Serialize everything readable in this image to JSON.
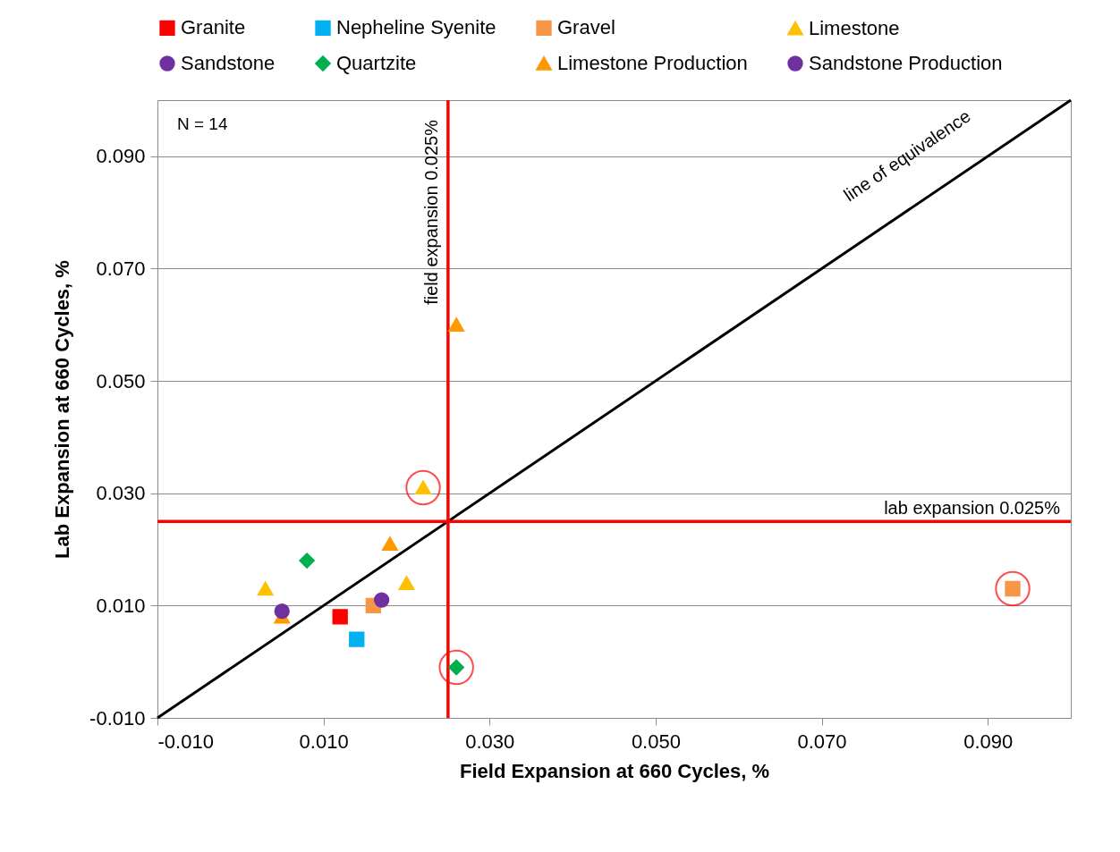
{
  "chart_data": {
    "type": "scatter",
    "xlabel": "Field Expansion at 660 Cycles, %",
    "ylabel": "Lab Expansion at 660 Cycles, %",
    "xlim": [
      -0.01,
      0.1
    ],
    "ylim": [
      -0.01,
      0.1
    ],
    "xticks": [
      {
        "value": -0.01,
        "label": "-0.010"
      },
      {
        "value": 0.01,
        "label": "0.010"
      },
      {
        "value": 0.03,
        "label": "0.030"
      },
      {
        "value": 0.05,
        "label": "0.050"
      },
      {
        "value": 0.07,
        "label": "0.070"
      },
      {
        "value": 0.09,
        "label": "0.090"
      }
    ],
    "yticks": [
      {
        "value": -0.01,
        "label": "-0.010"
      },
      {
        "value": 0.01,
        "label": "0.010"
      },
      {
        "value": 0.03,
        "label": "0.030"
      },
      {
        "value": 0.05,
        "label": "0.050"
      },
      {
        "value": 0.07,
        "label": "0.070"
      },
      {
        "value": 0.09,
        "label": "0.090"
      }
    ],
    "grid": "y",
    "legend": "top",
    "series": [
      {
        "name": "Granite",
        "color": "#ff0000",
        "marker": "square",
        "x": [
          0.012
        ],
        "values": [
          0.008
        ]
      },
      {
        "name": "Nepheline Syenite",
        "color": "#00b0f0",
        "marker": "square",
        "x": [
          0.014
        ],
        "values": [
          0.004
        ]
      },
      {
        "name": "Gravel",
        "color": "#f79646",
        "marker": "square",
        "x": [
          0.016,
          0.093
        ],
        "values": [
          0.01,
          0.013
        ]
      },
      {
        "name": "Limestone",
        "color": "#ffc000",
        "marker": "triangle",
        "x": [
          0.003,
          0.02,
          0.022
        ],
        "values": [
          0.013,
          0.014,
          0.031
        ]
      },
      {
        "name": "Sandstone",
        "color": "#7030a0",
        "marker": "circle",
        "x": [
          0.017
        ],
        "values": [
          0.011
        ]
      },
      {
        "name": "Quartzite",
        "color": "#00b050",
        "marker": "diamond",
        "x": [
          0.008,
          0.026
        ],
        "values": [
          0.018,
          -0.001
        ]
      },
      {
        "name": "Limestone Production",
        "color": "#ff9900",
        "marker": "triangle",
        "x": [
          0.026,
          0.018,
          0.005
        ],
        "values": [
          0.06,
          0.021,
          0.008
        ]
      },
      {
        "name": "Sandstone Production",
        "color": "#7030a0",
        "marker": "circle",
        "x": [
          0.005
        ],
        "values": [
          0.009
        ]
      },
      {
        "color": "#ff0000",
        "marker": "circle",
        "x": [
          0.022,
          0.026,
          0.093
        ],
        "values": [
          0.031,
          -0.001,
          0.013
        ]
      },
      {
        "type": "line",
        "color": "#000000",
        "x": [
          -0.01,
          0.1
        ],
        "values": [
          -0.01,
          0.1
        ]
      }
    ],
    "ref_lines": [
      {
        "axis": "x",
        "value": 0.025,
        "label": "field expansion 0.025%",
        "color": "#ff0000"
      },
      {
        "axis": "y",
        "value": 0.025,
        "label": "lab expansion 0.025%",
        "color": "#ff0000"
      }
    ],
    "annotations": [
      "N = 14",
      "line of equivalence"
    ]
  }
}
